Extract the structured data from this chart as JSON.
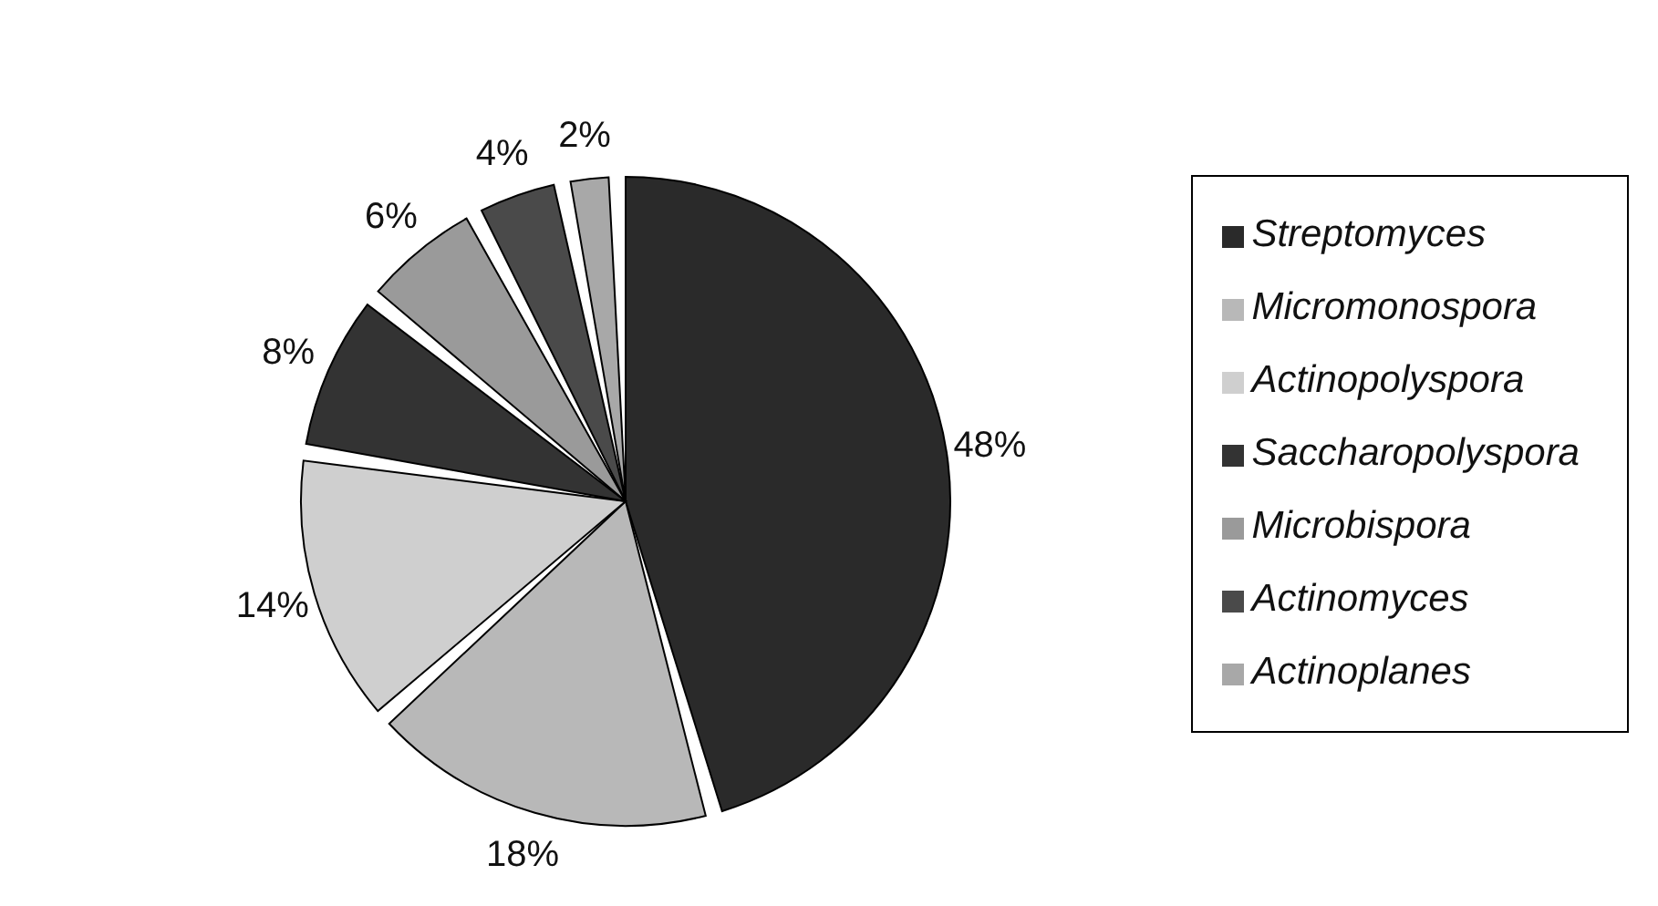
{
  "chart_data": {
    "type": "pie",
    "categories": [
      "Streptomyces",
      "Micromonospora",
      "Actinopolyspora",
      "Saccharopolyspora",
      "Microbispora",
      "Actinomyces",
      "Actinoplanes"
    ],
    "values": [
      48,
      18,
      14,
      8,
      6,
      4,
      2
    ],
    "value_labels": [
      "48%",
      "18%",
      "14%",
      "8%",
      "6%",
      "4%",
      "2%"
    ],
    "colors": [
      "#2a2a2a",
      "#b8b8b8",
      "#cfcfcf",
      "#333333",
      "#9a9a9a",
      "#4a4a4a",
      "#a8a8a8"
    ],
    "legend": "right"
  }
}
